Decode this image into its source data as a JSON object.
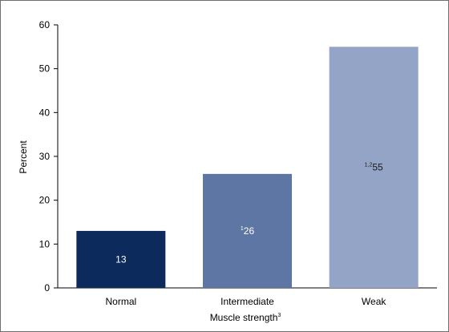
{
  "chart_data": {
    "type": "bar",
    "categories": [
      "Normal",
      "Intermediate",
      "Weak"
    ],
    "values": [
      13,
      26,
      55
    ],
    "value_labels": [
      {
        "prefix": "",
        "text": "13"
      },
      {
        "prefix": "1",
        "text": "26"
      },
      {
        "prefix": "1,2",
        "text": "55"
      }
    ],
    "bar_colors": [
      "#0d2a5c",
      "#5e76a4",
      "#94a4c6"
    ],
    "value_label_colors": [
      "#ffffff",
      "#ffffff",
      "#1a1a1a"
    ],
    "xlabel": "Muscle strength",
    "xlabel_superscript": "3",
    "ylabel": "Percent",
    "ylim": [
      0,
      60
    ],
    "yticks": [
      0,
      10,
      20,
      30,
      40,
      50,
      60
    ],
    "grid": false,
    "legend": "none"
  }
}
